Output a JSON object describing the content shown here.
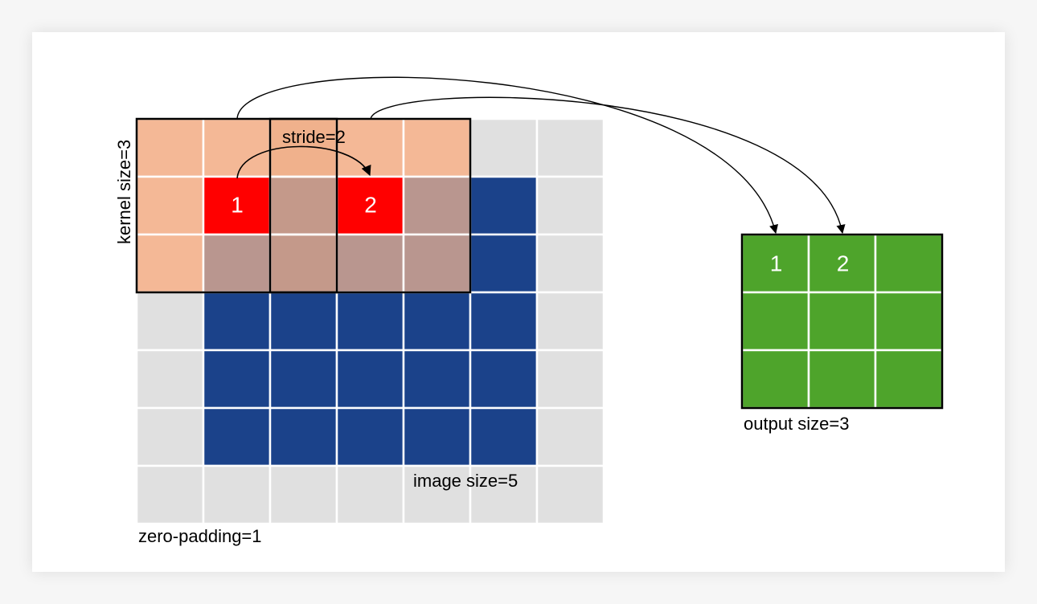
{
  "labels": {
    "kernel_size": "kernel size=3",
    "stride": "stride=2",
    "image_size": "image size=5",
    "zero_padding": "zero-padding=1",
    "output_size": "output size=3"
  },
  "kernel_positions": [
    "1",
    "2"
  ],
  "output_cells": [
    "1",
    "2",
    "",
    "",
    "",
    "",
    "",
    "",
    ""
  ],
  "colors": {
    "padding": "#e0e0e0",
    "image": "#1b428a",
    "kernel_overlay": "#f4b896",
    "kernel_over_image": "#b9968f",
    "center": "#ff0000",
    "output": "#4ea42b",
    "grid_line": "#ffffff",
    "frame": "#000000"
  }
}
